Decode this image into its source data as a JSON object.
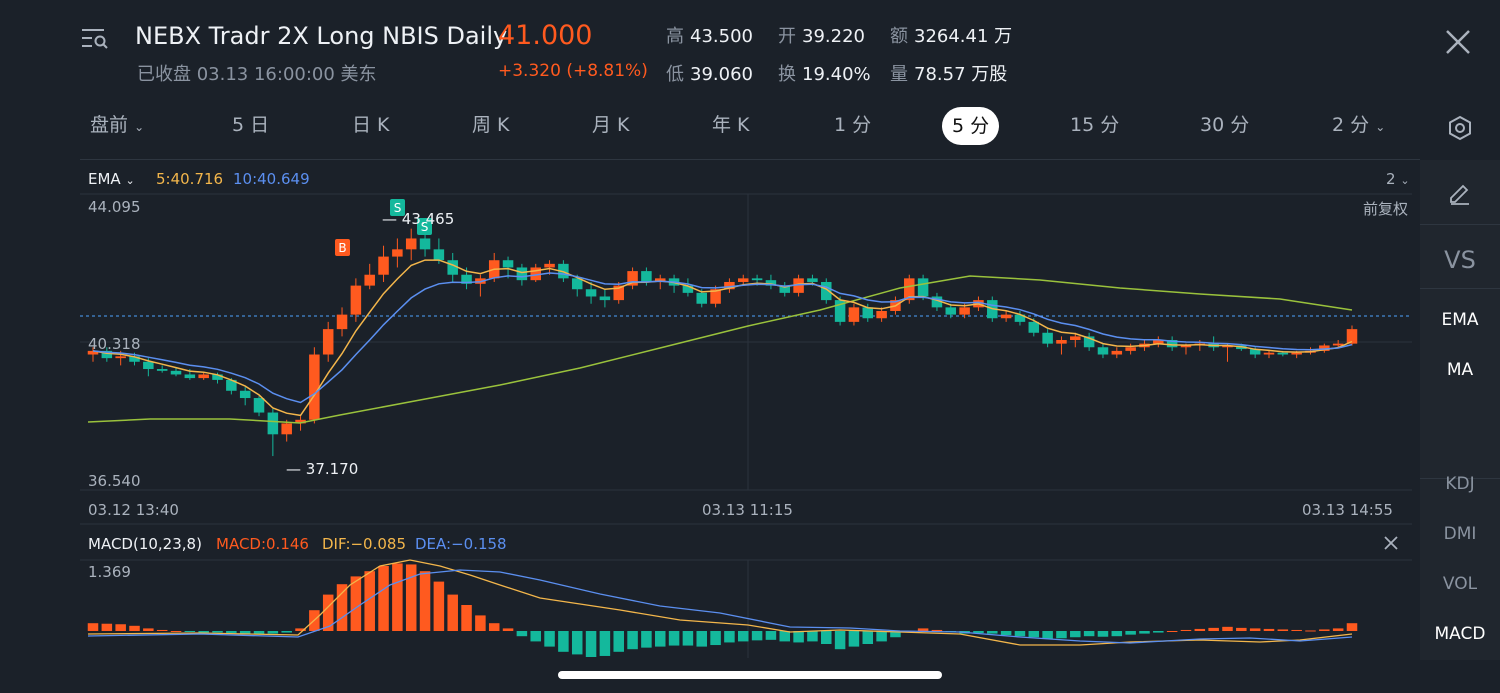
{
  "header": {
    "title": "NEBX Tradr 2X Long NBIS Daily",
    "status": "已收盘 03.13 16:00:00 美东",
    "price": "41.000",
    "change": "+3.320 (+8.81%)",
    "stats": [
      {
        "label": "高",
        "value": "43.500"
      },
      {
        "label": "开",
        "value": "39.220"
      },
      {
        "label": "额",
        "value": "3264.41 万"
      },
      {
        "label": "低",
        "value": "39.060"
      },
      {
        "label": "换",
        "value": "19.40%"
      },
      {
        "label": "量",
        "value": "78.57 万股"
      }
    ]
  },
  "tabs": [
    "盘前",
    "5 日",
    "日 K",
    "周 K",
    "月 K",
    "年 K",
    "1 分",
    "5 分",
    "15 分",
    "30 分",
    "2 分"
  ],
  "active_tab": "5 分",
  "main_chart": {
    "indicator": "EMA",
    "ema5": "5:40.716",
    "ema10": "10:40.649",
    "period_selector": "2",
    "adjust_label": "前复权",
    "y_top": "44.095",
    "y_mid": "40.318",
    "y_bottom": "36.540",
    "low_marker": "37.170",
    "high_marker": "43.465",
    "buy_marker": "B",
    "sell_marker": "S",
    "x_labels": [
      "03.12 13:40",
      "03.13 11:15",
      "03.13 14:55"
    ]
  },
  "macd": {
    "title": "MACD(10,23,8)",
    "macd": "MACD:0.146",
    "dif": "DIF:−0.085",
    "dea": "DEA:−0.158",
    "y_top": "1.369"
  },
  "right_panel": [
    "EMA",
    "MA",
    "KDJ",
    "DMI",
    "VOL",
    "MACD"
  ],
  "right_panel_vs": "VS",
  "colors": {
    "up": "#ff5a1f",
    "down": "#14b89c",
    "ema5": "#f3b64b",
    "ema10": "#5b8ff0",
    "ema_long": "#9ac23c",
    "bg": "#1b2129"
  },
  "chart_data": {
    "type": "candlestick",
    "ylim": [
      36.54,
      44.095
    ],
    "candles": [
      [
        40.0,
        40.2,
        39.8,
        40.1
      ],
      [
        40.1,
        40.2,
        39.8,
        39.9
      ],
      [
        39.9,
        40.1,
        39.7,
        39.95
      ],
      [
        39.95,
        40.05,
        39.7,
        39.8
      ],
      [
        39.8,
        39.9,
        39.4,
        39.6
      ],
      [
        39.6,
        39.7,
        39.5,
        39.55
      ],
      [
        39.55,
        39.65,
        39.4,
        39.45
      ],
      [
        39.45,
        39.6,
        39.3,
        39.35
      ],
      [
        39.35,
        39.5,
        39.3,
        39.45
      ],
      [
        39.45,
        39.5,
        39.2,
        39.3
      ],
      [
        39.3,
        39.35,
        38.9,
        39.0
      ],
      [
        39.0,
        39.1,
        38.6,
        38.8
      ],
      [
        38.8,
        38.85,
        38.3,
        38.4
      ],
      [
        38.4,
        38.5,
        37.2,
        37.8
      ],
      [
        37.8,
        38.2,
        37.6,
        38.1
      ],
      [
        38.1,
        38.3,
        37.9,
        38.2
      ],
      [
        38.2,
        40.2,
        38.1,
        40.0
      ],
      [
        40.0,
        40.9,
        39.8,
        40.7
      ],
      [
        40.7,
        41.3,
        40.5,
        41.1
      ],
      [
        41.1,
        42.1,
        40.9,
        41.9
      ],
      [
        41.9,
        42.5,
        41.8,
        42.2
      ],
      [
        42.2,
        43.0,
        42.0,
        42.7
      ],
      [
        42.7,
        43.2,
        42.4,
        42.9
      ],
      [
        42.9,
        43.47,
        42.6,
        43.2
      ],
      [
        43.2,
        43.3,
        42.7,
        42.9
      ],
      [
        42.9,
        43.2,
        42.5,
        42.6
      ],
      [
        42.6,
        42.8,
        42.0,
        42.2
      ],
      [
        42.2,
        42.4,
        41.8,
        41.95
      ],
      [
        41.95,
        42.2,
        41.6,
        42.1
      ],
      [
        42.1,
        42.8,
        42.0,
        42.6
      ],
      [
        42.6,
        42.7,
        42.1,
        42.4
      ],
      [
        42.4,
        42.5,
        41.9,
        42.05
      ],
      [
        42.05,
        42.5,
        42.0,
        42.4
      ],
      [
        42.4,
        42.6,
        42.2,
        42.5
      ],
      [
        42.5,
        42.6,
        42.0,
        42.1
      ],
      [
        42.1,
        42.2,
        41.6,
        41.8
      ],
      [
        41.8,
        42.0,
        41.4,
        41.6
      ],
      [
        41.6,
        41.8,
        41.3,
        41.5
      ],
      [
        41.5,
        42.0,
        41.4,
        41.9
      ],
      [
        41.9,
        42.4,
        41.8,
        42.3
      ],
      [
        42.3,
        42.4,
        41.9,
        42.0
      ],
      [
        42.0,
        42.2,
        41.8,
        42.1
      ],
      [
        42.1,
        42.2,
        41.7,
        41.9
      ],
      [
        41.9,
        42.1,
        41.6,
        41.7
      ],
      [
        41.7,
        41.8,
        41.3,
        41.4
      ],
      [
        41.4,
        41.9,
        41.3,
        41.8
      ],
      [
        41.8,
        42.1,
        41.7,
        42.0
      ],
      [
        42.0,
        42.2,
        41.9,
        42.1
      ],
      [
        42.1,
        42.2,
        41.9,
        42.05
      ],
      [
        42.05,
        42.2,
        41.8,
        41.9
      ],
      [
        41.9,
        42.0,
        41.6,
        41.7
      ],
      [
        41.7,
        42.2,
        41.6,
        42.1
      ],
      [
        42.1,
        42.2,
        41.9,
        42.0
      ],
      [
        42.0,
        42.1,
        41.4,
        41.5
      ],
      [
        41.5,
        41.6,
        40.8,
        40.9
      ],
      [
        40.9,
        41.4,
        40.8,
        41.3
      ],
      [
        41.3,
        41.4,
        40.9,
        41.0
      ],
      [
        41.0,
        41.3,
        40.9,
        41.2
      ],
      [
        41.2,
        41.6,
        41.1,
        41.5
      ],
      [
        41.5,
        42.2,
        41.4,
        42.1
      ],
      [
        42.1,
        42.2,
        41.5,
        41.6
      ],
      [
        41.6,
        41.7,
        41.2,
        41.3
      ],
      [
        41.3,
        41.4,
        41.0,
        41.1
      ],
      [
        41.1,
        41.4,
        41.0,
        41.3
      ],
      [
        41.3,
        41.6,
        41.2,
        41.5
      ],
      [
        41.5,
        41.6,
        40.9,
        41.0
      ],
      [
        41.0,
        41.2,
        40.9,
        41.1
      ],
      [
        41.1,
        41.2,
        40.8,
        40.9
      ],
      [
        40.9,
        41.0,
        40.5,
        40.6
      ],
      [
        40.6,
        40.7,
        40.2,
        40.3
      ],
      [
        40.3,
        40.5,
        40.0,
        40.4
      ],
      [
        40.4,
        40.6,
        40.2,
        40.5
      ],
      [
        40.5,
        40.6,
        40.1,
        40.2
      ],
      [
        40.2,
        40.3,
        39.9,
        40.0
      ],
      [
        40.0,
        40.2,
        39.9,
        40.1
      ],
      [
        40.1,
        40.3,
        40.0,
        40.2
      ],
      [
        40.2,
        40.4,
        40.1,
        40.3
      ],
      [
        40.3,
        40.5,
        40.2,
        40.4
      ],
      [
        40.4,
        40.5,
        40.1,
        40.2
      ],
      [
        40.2,
        40.3,
        40.0,
        40.25
      ],
      [
        40.25,
        40.4,
        40.1,
        40.3
      ],
      [
        40.3,
        40.5,
        40.1,
        40.2
      ],
      [
        40.2,
        40.3,
        39.8,
        40.25
      ],
      [
        40.25,
        40.3,
        40.1,
        40.15
      ],
      [
        40.15,
        40.2,
        39.9,
        40.0
      ],
      [
        40.0,
        40.1,
        39.9,
        40.05
      ],
      [
        40.05,
        40.1,
        39.95,
        40.0
      ],
      [
        40.0,
        40.1,
        39.9,
        40.05
      ],
      [
        40.05,
        40.2,
        40.0,
        40.1
      ],
      [
        40.1,
        40.3,
        40.05,
        40.25
      ],
      [
        40.25,
        40.4,
        40.2,
        40.3
      ],
      [
        40.3,
        40.8,
        40.25,
        40.7
      ]
    ],
    "series": [
      {
        "name": "EMA5"
      },
      {
        "name": "EMA10"
      }
    ],
    "macd_hist": [
      0.15,
      0.14,
      0.13,
      0.1,
      0.05,
      0.02,
      0.0,
      -0.02,
      -0.03,
      -0.03,
      -0.04,
      -0.05,
      -0.06,
      -0.05,
      -0.03,
      0.05,
      0.4,
      0.7,
      0.9,
      1.05,
      1.15,
      1.25,
      1.3,
      1.28,
      1.15,
      0.95,
      0.7,
      0.5,
      0.3,
      0.15,
      0.05,
      -0.1,
      -0.2,
      -0.3,
      -0.4,
      -0.45,
      -0.5,
      -0.48,
      -0.4,
      -0.35,
      -0.32,
      -0.3,
      -0.28,
      -0.28,
      -0.3,
      -0.27,
      -0.22,
      -0.2,
      -0.18,
      -0.17,
      -0.2,
      -0.22,
      -0.2,
      -0.25,
      -0.35,
      -0.3,
      -0.25,
      -0.2,
      -0.12,
      0.0,
      0.05,
      0.02,
      -0.02,
      -0.05,
      -0.04,
      -0.05,
      -0.08,
      -0.1,
      -0.12,
      -0.15,
      -0.14,
      -0.12,
      -0.1,
      -0.11,
      -0.1,
      -0.07,
      -0.05,
      -0.03,
      0.0,
      0.02,
      0.04,
      0.06,
      0.08,
      0.06,
      0.05,
      0.04,
      0.03,
      0.02,
      0.01,
      0.03,
      0.05,
      0.15
    ]
  }
}
